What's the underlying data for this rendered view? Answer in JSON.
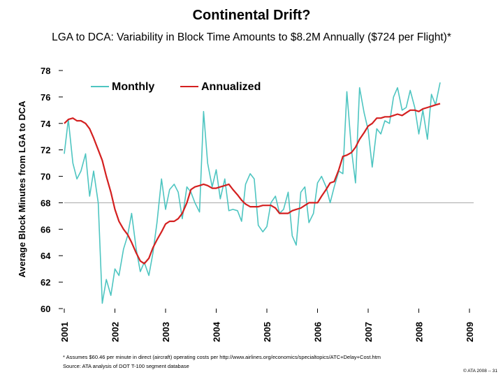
{
  "chart_data": {
    "type": "line",
    "title": "Continental Drift?",
    "subtitle": "LGA to DCA: Variability in Block Time Amounts to $8.2M Annually ($724 per Flight)*",
    "y_label": "Average Block Minutes from LGA to DCA",
    "footnote": "* Assumes $60.46 per minute in direct (aircraft) operating costs per http://www.airlines.org/economics/specialtopics/ATC+Delay+Cost.htm",
    "source": "Source: ATA analysis of DOT T-100 segment database",
    "copyright": "© ATA 2008 -- 31",
    "xlim": [
      2001,
      2009
    ],
    "xticks": [
      2001,
      2002,
      2003,
      2004,
      2005,
      2006,
      2007,
      2008,
      2009
    ],
    "ylim": [
      60,
      78
    ],
    "yticks": [
      60,
      62,
      64,
      66,
      68,
      70,
      72,
      74,
      76,
      78
    ],
    "reference_line": 68,
    "reference_color": "#aaaaaa",
    "x": [
      2001.0,
      2001.08,
      2001.17,
      2001.25,
      2001.33,
      2001.42,
      2001.5,
      2001.58,
      2001.67,
      2001.75,
      2001.83,
      2001.92,
      2002.0,
      2002.08,
      2002.17,
      2002.25,
      2002.33,
      2002.42,
      2002.5,
      2002.58,
      2002.67,
      2002.75,
      2002.83,
      2002.92,
      2003.0,
      2003.08,
      2003.17,
      2003.25,
      2003.33,
      2003.42,
      2003.5,
      2003.58,
      2003.67,
      2003.75,
      2003.83,
      2003.92,
      2004.0,
      2004.08,
      2004.17,
      2004.25,
      2004.33,
      2004.42,
      2004.5,
      2004.58,
      2004.67,
      2004.75,
      2004.83,
      2004.92,
      2005.0,
      2005.08,
      2005.17,
      2005.25,
      2005.33,
      2005.42,
      2005.5,
      2005.58,
      2005.67,
      2005.75,
      2005.83,
      2005.92,
      2006.0,
      2006.08,
      2006.17,
      2006.25,
      2006.33,
      2006.42,
      2006.5,
      2006.58,
      2006.67,
      2006.75,
      2006.83,
      2006.92,
      2007.0,
      2007.08,
      2007.17,
      2007.25,
      2007.33,
      2007.42,
      2007.5,
      2007.58,
      2007.67,
      2007.75,
      2007.83,
      2007.92,
      2008.0,
      2008.08,
      2008.17,
      2008.25,
      2008.33,
      2008.42
    ],
    "series": [
      {
        "name": "Monthly",
        "color": "#4ec5c1",
        "values": [
          71.7,
          74.3,
          71.0,
          69.8,
          70.4,
          71.7,
          68.5,
          70.4,
          68.0,
          60.4,
          62.2,
          61.0,
          63.0,
          62.5,
          64.5,
          65.5,
          67.2,
          64.5,
          62.8,
          63.5,
          62.5,
          64.2,
          66.5,
          69.8,
          67.5,
          69.0,
          69.4,
          68.8,
          66.8,
          69.2,
          68.8,
          68.0,
          67.3,
          74.9,
          71.0,
          69.2,
          70.5,
          68.3,
          69.8,
          67.4,
          67.5,
          67.4,
          66.6,
          69.4,
          70.2,
          69.8,
          66.3,
          65.8,
          66.2,
          68.0,
          68.5,
          67.2,
          67.5,
          68.8,
          65.5,
          64.8,
          68.8,
          69.2,
          66.5,
          67.2,
          69.5,
          70.0,
          69.2,
          68.0,
          69.2,
          70.4,
          70.2,
          76.4,
          72.0,
          69.5,
          76.7,
          74.8,
          73.5,
          70.7,
          73.6,
          73.2,
          74.2,
          74.0,
          76.0,
          76.7,
          75.0,
          75.2,
          76.5,
          75.2,
          73.2,
          75.0,
          72.8,
          76.2,
          75.4,
          77.1
        ]
      },
      {
        "name": "Annualized",
        "color": "#d42020",
        "values": [
          74.0,
          74.3,
          74.4,
          74.2,
          74.2,
          74.0,
          73.6,
          72.9,
          72.0,
          71.2,
          70.0,
          68.8,
          67.5,
          66.6,
          66.0,
          65.6,
          65.0,
          64.2,
          63.6,
          63.4,
          63.8,
          64.6,
          65.2,
          65.8,
          66.4,
          66.6,
          66.6,
          66.8,
          67.2,
          68.0,
          69.0,
          69.2,
          69.3,
          69.4,
          69.3,
          69.1,
          69.1,
          69.2,
          69.3,
          69.4,
          69.0,
          68.6,
          68.2,
          67.9,
          67.7,
          67.7,
          67.7,
          67.8,
          67.8,
          67.8,
          67.6,
          67.2,
          67.2,
          67.2,
          67.4,
          67.5,
          67.6,
          67.8,
          68.0,
          68.0,
          68.0,
          68.5,
          69.0,
          69.5,
          69.6,
          70.5,
          71.5,
          71.6,
          71.8,
          72.2,
          72.8,
          73.3,
          73.8,
          74.0,
          74.4,
          74.4,
          74.5,
          74.5,
          74.6,
          74.7,
          74.6,
          74.8,
          75.0,
          75.0,
          74.9,
          75.1,
          75.2,
          75.3,
          75.4,
          75.5
        ]
      }
    ]
  }
}
